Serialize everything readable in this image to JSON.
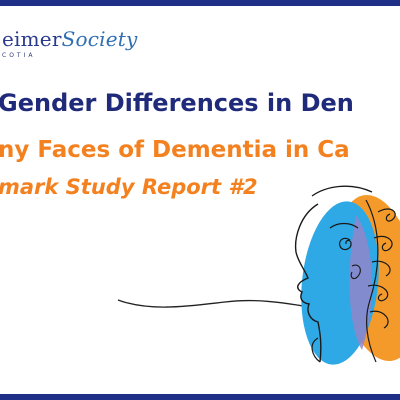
{
  "logo": {
    "name_part_a": "eimer",
    "name_part_b": "Society",
    "subtitle": "COTIA"
  },
  "titles": {
    "line1": "Gender Differences in Den",
    "line2": "ny Faces of Dementia in Ca",
    "line3": "mark Study Report #2"
  },
  "colors": {
    "navy": "#1f2a7a",
    "orange": "#f4811f",
    "blue_face": "#2fa8e6",
    "orange_face": "#f49a2a"
  },
  "icons": {
    "illustration": "two-faces-profile-illustration"
  }
}
